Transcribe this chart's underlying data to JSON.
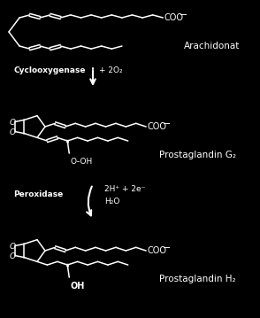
{
  "background_color": "#000000",
  "text_color": "#ffffff",
  "line_color": "#ffffff",
  "fig_width": 2.94,
  "fig_height": 3.59,
  "dpi": 100,
  "labels": {
    "arachidonat": "Arachidonat",
    "cyclooxygenase": "Cyclooxygenase",
    "plus_2o2": "+ 2O₂",
    "prostaglandin_g2": "Prostaglandin G₂",
    "peroxidase": "Peroxidase",
    "reaction2": "2H⁺ + 2e⁻",
    "h2o": "H₂O",
    "prostaglandin_h2": "Prostaglandin H₂",
    "ooh": "O–OH",
    "oh": "OH"
  }
}
